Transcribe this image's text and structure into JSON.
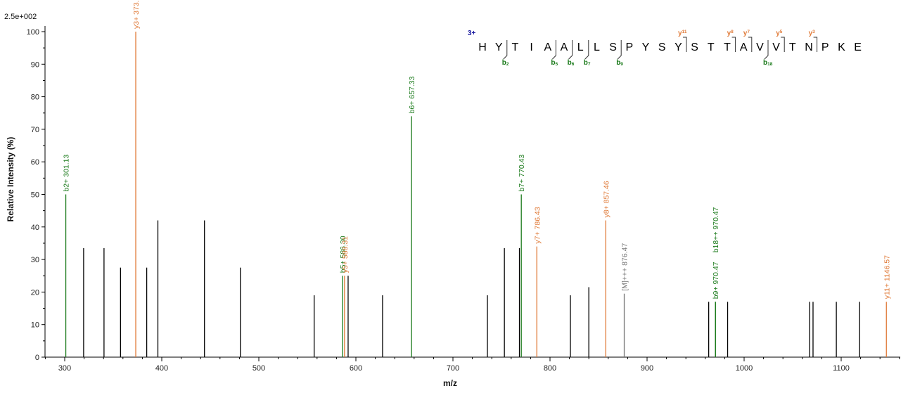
{
  "colors": {
    "y_ion": "#e07b39",
    "b_ion": "#1a7a1a",
    "precursor": "#777777",
    "unassigned": "#000000",
    "charge": "#1a1aa0"
  },
  "scale_label": "2.5e+002",
  "chart_data": {
    "type": "bar",
    "xlabel": "m/z",
    "ylabel": "Relative  Intensity (%)",
    "xlim": [
      278,
      1160
    ],
    "ylim": [
      0,
      100
    ],
    "x_ticks": [
      300,
      400,
      500,
      600,
      700,
      800,
      900,
      1000,
      1100
    ],
    "y_ticks": [
      0,
      10,
      20,
      30,
      40,
      50,
      60,
      70,
      80,
      90,
      100
    ],
    "grid": false,
    "peaks": [
      {
        "mz": 301.13,
        "intensity": 50,
        "type": "b",
        "label": "b2+ 301.13"
      },
      {
        "mz": 319.5,
        "intensity": 33.5,
        "type": "none",
        "label": ""
      },
      {
        "mz": 340.5,
        "intensity": 33.5,
        "type": "none",
        "label": ""
      },
      {
        "mz": 357.5,
        "intensity": 27.5,
        "type": "none",
        "label": ""
      },
      {
        "mz": 373.2,
        "intensity": 100,
        "type": "y",
        "label": "y3+ 373.2"
      },
      {
        "mz": 384.5,
        "intensity": 27.5,
        "type": "none",
        "label": ""
      },
      {
        "mz": 396,
        "intensity": 42,
        "type": "none",
        "label": ""
      },
      {
        "mz": 444,
        "intensity": 42,
        "type": "none",
        "label": ""
      },
      {
        "mz": 481,
        "intensity": 27.5,
        "type": "none",
        "label": ""
      },
      {
        "mz": 557,
        "intensity": 19,
        "type": "none",
        "label": ""
      },
      {
        "mz": 586.3,
        "intensity": 25,
        "type": "b",
        "label": "b5+ 586.30"
      },
      {
        "mz": 588.31,
        "intensity": 25,
        "type": "y",
        "label": "y5+ 588.31"
      },
      {
        "mz": 592,
        "intensity": 25,
        "type": "none",
        "label": ""
      },
      {
        "mz": 627.5,
        "intensity": 19,
        "type": "none",
        "label": ""
      },
      {
        "mz": 657.33,
        "intensity": 74,
        "type": "b",
        "label": "b6+ 657.33"
      },
      {
        "mz": 735.5,
        "intensity": 19,
        "type": "none",
        "label": ""
      },
      {
        "mz": 753,
        "intensity": 33.5,
        "type": "none",
        "label": ""
      },
      {
        "mz": 768.5,
        "intensity": 33.5,
        "type": "none",
        "label": ""
      },
      {
        "mz": 770.43,
        "intensity": 50,
        "type": "b",
        "label": "b7+ 770.43"
      },
      {
        "mz": 786.43,
        "intensity": 34,
        "type": "y",
        "label": "y7+ 786.43"
      },
      {
        "mz": 821,
        "intensity": 19,
        "type": "none",
        "label": ""
      },
      {
        "mz": 840,
        "intensity": 21.5,
        "type": "none",
        "label": ""
      },
      {
        "mz": 857.46,
        "intensity": 42,
        "type": "y",
        "label": "y8+ 857.46"
      },
      {
        "mz": 876.47,
        "intensity": 19.5,
        "type": "precursor",
        "label": "[M]+++ 876.47"
      },
      {
        "mz": 963.5,
        "intensity": 17,
        "type": "none",
        "label": ""
      },
      {
        "mz": 970.47,
        "intensity": 17,
        "type": "b",
        "label": "b9+ 970.47"
      },
      {
        "mz": 970.47,
        "intensity": 17,
        "type": "b",
        "label": "b18++ 970.47"
      },
      {
        "mz": 983,
        "intensity": 17,
        "type": "none",
        "label": ""
      },
      {
        "mz": 1067.5,
        "intensity": 17,
        "type": "none",
        "label": ""
      },
      {
        "mz": 1071,
        "intensity": 17,
        "type": "none",
        "label": ""
      },
      {
        "mz": 1095,
        "intensity": 17,
        "type": "none",
        "label": ""
      },
      {
        "mz": 1119,
        "intensity": 17,
        "type": "none",
        "label": ""
      },
      {
        "mz": 1146.57,
        "intensity": 17,
        "type": "y",
        "label": "y11+ 1146.57"
      }
    ]
  },
  "sequence": {
    "charge": "3+",
    "letters": [
      "H",
      "Y",
      "T",
      "I",
      "A",
      "A",
      "L",
      "L",
      "S",
      "P",
      "Y",
      "S",
      "Y",
      "S",
      "T",
      "T",
      "A",
      "V",
      "V",
      "T",
      "N",
      "P",
      "K",
      "E"
    ],
    "y_ions": [
      {
        "after": 13,
        "label": "y",
        "num": "11"
      },
      {
        "after": 16,
        "label": "y",
        "num": "8"
      },
      {
        "after": 17,
        "label": "y",
        "num": "7"
      },
      {
        "after": 19,
        "label": "y",
        "num": "5"
      },
      {
        "after": 21,
        "label": "y",
        "num": "3"
      }
    ],
    "b_ions": [
      {
        "after": 2,
        "label": "b",
        "num": "2"
      },
      {
        "after": 5,
        "label": "b",
        "num": "5"
      },
      {
        "after": 6,
        "label": "b",
        "num": "6"
      },
      {
        "after": 7,
        "label": "b",
        "num": "7"
      },
      {
        "after": 9,
        "label": "b",
        "num": "9"
      },
      {
        "after": 18,
        "label": "b",
        "num": "18"
      }
    ]
  }
}
